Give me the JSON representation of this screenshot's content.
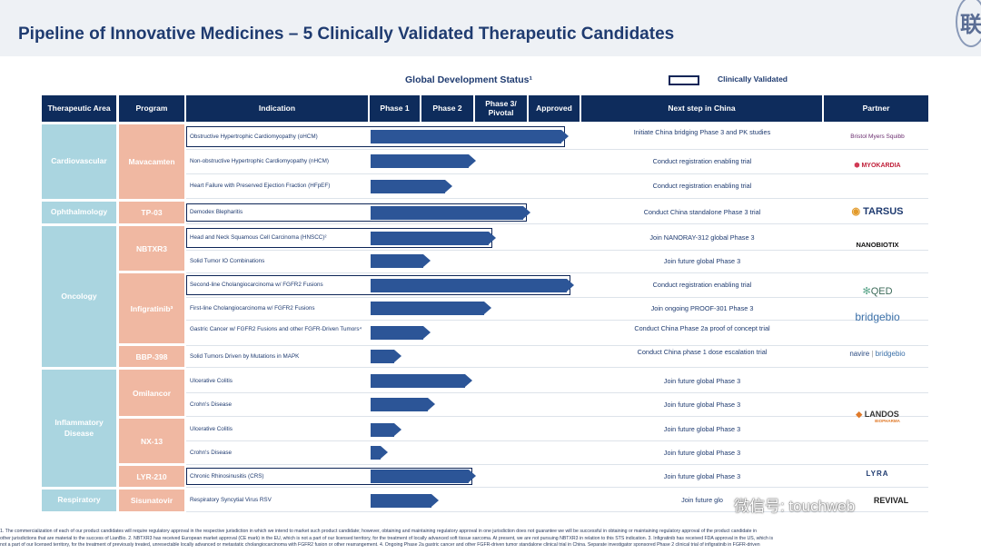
{
  "page": {
    "title": "Pipeline of Innovative Medicines – 5 Clinically Validated Therapeutic Candidates",
    "status_label": "Global Development Status¹",
    "legend_label": "Clinically Validated",
    "logo_mark": "联"
  },
  "headers": {
    "area": "Therapeutic Area",
    "program": "Program",
    "indication": "Indication",
    "phase1": "Phase 1",
    "phase2": "Phase 2",
    "phase3": "Phase 3/ Pivotal",
    "approved": "Approved",
    "next": "Next step in China",
    "partner": "Partner"
  },
  "areas": [
    "Cardiovascular",
    "Ophthalmology",
    "Oncology",
    "Inflammatory Disease",
    "Respiratory"
  ],
  "programs": [
    "Mavacamten",
    "TP-03",
    "NBTXR3",
    "Infigratinib³",
    "BBP-398",
    "Omilancor",
    "NX-13",
    "LYR-210",
    "Sisunatovir"
  ],
  "rows": [
    {
      "indication": "Obstructive Hypertrophic Cardiomyopathy (oHCM)",
      "progress": 0.97,
      "validated": true,
      "next": "Initiate China bridging Phase 3 and PK studies"
    },
    {
      "indication": "Non-obstructive Hypertrophic Cardiomyopathy (nHCM)",
      "progress": 0.5,
      "validated": false,
      "next": "Conduct registration enabling trial"
    },
    {
      "indication": "Heart Failure with Preserved Ejection Fraction (HFpEF)",
      "progress": 0.38,
      "validated": false,
      "next": "Conduct registration enabling trial"
    },
    {
      "indication": "Demodex Blepharitis",
      "progress": 0.78,
      "validated": true,
      "next": "Conduct China standalone Phase 3 trial"
    },
    {
      "indication": "Head and Neck Squamous Cell Carcinoma (HNSCC)²",
      "progress": 0.6,
      "validated": true,
      "next": "Join NANORAY-312 global Phase 3"
    },
    {
      "indication": "Solid Tumor IO Combinations",
      "progress": 0.27,
      "validated": false,
      "next": "Join future global Phase 3"
    },
    {
      "indication": "Second-line Cholangiocarcinoma w/ FGFR2 Fusions",
      "progress": 1.0,
      "validated": true,
      "next": "Conduct registration enabling trial"
    },
    {
      "indication": "First-line Cholangiocarcinoma w/ FGFR2 Fusions",
      "progress": 0.58,
      "validated": false,
      "next": "Join ongoing PROOF-301 Phase 3"
    },
    {
      "indication": "Gastric Cancer w/ FGFR2 Fusions and other FGFR-Driven Tumors⁴",
      "progress": 0.27,
      "validated": false,
      "next": "Conduct China Phase 2a proof of concept trial"
    },
    {
      "indication": "Solid Tumors Driven by Mutations in MAPK",
      "progress": 0.12,
      "validated": false,
      "next": "Conduct China phase 1 dose escalation trial"
    },
    {
      "indication": "Ulcerative Colitis",
      "progress": 0.48,
      "validated": false,
      "next": "Join future global Phase 3"
    },
    {
      "indication": "Crohn's Disease",
      "progress": 0.29,
      "validated": false,
      "next": "Join future global Phase 3"
    },
    {
      "indication": "Ulcerative Colitis",
      "progress": 0.12,
      "validated": false,
      "next": "Join future global Phase 3"
    },
    {
      "indication": "Crohn's Disease",
      "progress": 0.05,
      "validated": false,
      "next": "Join future global Phase 3"
    },
    {
      "indication": "Chronic Rhinosinusitis (CRS)",
      "progress": 0.5,
      "validated": true,
      "next": "Join future global Phase 3"
    },
    {
      "indication": "Respiratory Syncytial Virus RSV",
      "progress": 0.31,
      "validated": false,
      "next": "Join future glo"
    }
  ],
  "partners": {
    "bms": "Bristol Myers Squibb",
    "myokardia": "MYOKARDIA",
    "tarsus": "TARSUS",
    "nanobiotix": "NANOBIOTIX",
    "qed": "QED",
    "bridgebio": "bridgebio",
    "navire": "navire",
    "navire_bridge": "bridgebio",
    "landos": "LANDOS",
    "landos_sub": "BIOPHARMA",
    "lyra": "LYRA",
    "revival": "REVIVAL"
  },
  "colors": {
    "navy": "#0e2c5c",
    "bar": "#2c5597",
    "area": "#aad5e0",
    "program": "#f0b8a2"
  },
  "watermark": "微信号: touchweb",
  "footnotes": [
    "1. The commercialization of each of our product candidates will require regulatory approval in the respective jurisdiction in which we intend to market such product candidate; however, obtaining and maintaining regulatory approval in one jurisdiction does not guarantee we will be successful in obtaining or maintaining regulatory approval of the product candidate in",
    "other jurisdictions that are material to the success of LianBio. 2. NBTXR3 has received European market approval (CE mark) in the EU, which is not a part of our licensed territory, for the treatment of locally advanced soft tissue sarcoma. At present, we are not pursuing NBTXR3 in relation to this STS indication. 3. Infigratinib has received FDA approval in the US, which is",
    "not a part of our licensed territory, for the treatment of previously treated, unresectable locally advanced or metastatic cholangiocarcinoma with FGFR2 fusion or other rearrangement. 4. Ongoing Phase 2a gastric cancer and other FGFR-driven tumor standalone clinical trial in China. Separate investigator sponsored Phase 2 clinical trial of infigratinib in FGFR-driven"
  ]
}
